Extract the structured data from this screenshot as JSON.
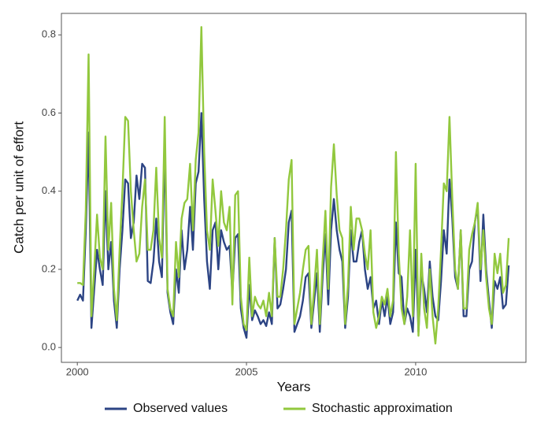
{
  "chart_data": {
    "type": "line",
    "xlabel": "Years",
    "ylabel": "Catch per unit of effort",
    "x": [
      2000,
      2000.083,
      2000.167,
      2000.25,
      2000.333,
      2000.417,
      2000.5,
      2000.583,
      2000.667,
      2000.75,
      2000.833,
      2000.917,
      2001,
      2001.083,
      2001.167,
      2001.25,
      2001.333,
      2001.417,
      2001.5,
      2001.583,
      2001.667,
      2001.75,
      2001.833,
      2001.917,
      2002,
      2002.083,
      2002.167,
      2002.25,
      2002.333,
      2002.417,
      2002.5,
      2002.583,
      2002.667,
      2002.75,
      2002.833,
      2002.917,
      2003,
      2003.083,
      2003.167,
      2003.25,
      2003.333,
      2003.417,
      2003.5,
      2003.583,
      2003.667,
      2003.75,
      2003.833,
      2003.917,
      2004,
      2004.083,
      2004.167,
      2004.25,
      2004.333,
      2004.417,
      2004.5,
      2004.583,
      2004.667,
      2004.75,
      2004.833,
      2004.917,
      2005,
      2005.083,
      2005.167,
      2005.25,
      2005.333,
      2005.417,
      2005.5,
      2005.583,
      2005.667,
      2005.75,
      2005.833,
      2005.917,
      2006,
      2006.083,
      2006.167,
      2006.25,
      2006.333,
      2006.417,
      2006.5,
      2006.583,
      2006.667,
      2006.75,
      2006.833,
      2006.917,
      2007,
      2007.083,
      2007.167,
      2007.25,
      2007.333,
      2007.417,
      2007.5,
      2007.583,
      2007.667,
      2007.75,
      2007.833,
      2007.917,
      2008,
      2008.083,
      2008.167,
      2008.25,
      2008.333,
      2008.417,
      2008.5,
      2008.583,
      2008.667,
      2008.75,
      2008.833,
      2008.917,
      2009,
      2009.083,
      2009.167,
      2009.25,
      2009.333,
      2009.417,
      2009.5,
      2009.583,
      2009.667,
      2009.75,
      2009.833,
      2009.917,
      2010,
      2010.083,
      2010.167,
      2010.25,
      2010.333,
      2010.417,
      2010.5,
      2010.583,
      2010.667,
      2010.75,
      2010.833,
      2010.917,
      2011,
      2011.083,
      2011.167,
      2011.25,
      2011.333,
      2011.417,
      2011.5,
      2011.583,
      2011.667,
      2011.75,
      2011.833,
      2011.917,
      2012,
      2012.083,
      2012.167,
      2012.25,
      2012.333,
      2012.417,
      2012.5,
      2012.583,
      2012.667,
      2012.75
    ],
    "series": [
      {
        "name": "Observed values",
        "color": "#2c4484",
        "values": [
          0.12,
          0.135,
          0.12,
          0.3,
          0.55,
          0.05,
          0.15,
          0.25,
          0.2,
          0.16,
          0.4,
          0.2,
          0.27,
          0.12,
          0.05,
          0.2,
          0.3,
          0.43,
          0.42,
          0.28,
          0.32,
          0.44,
          0.38,
          0.47,
          0.46,
          0.17,
          0.165,
          0.22,
          0.33,
          0.22,
          0.18,
          0.52,
          0.14,
          0.09,
          0.06,
          0.2,
          0.14,
          0.3,
          0.2,
          0.25,
          0.36,
          0.25,
          0.42,
          0.45,
          0.6,
          0.38,
          0.22,
          0.15,
          0.3,
          0.32,
          0.2,
          0.3,
          0.27,
          0.25,
          0.26,
          0.14,
          0.28,
          0.29,
          0.1,
          0.05,
          0.025,
          0.16,
          0.07,
          0.095,
          0.08,
          0.06,
          0.07,
          0.055,
          0.09,
          0.06,
          0.28,
          0.1,
          0.11,
          0.15,
          0.2,
          0.32,
          0.35,
          0.04,
          0.06,
          0.08,
          0.12,
          0.18,
          0.19,
          0.05,
          0.12,
          0.19,
          0.04,
          0.18,
          0.29,
          0.11,
          0.3,
          0.38,
          0.3,
          0.25,
          0.22,
          0.05,
          0.13,
          0.3,
          0.22,
          0.22,
          0.27,
          0.3,
          0.2,
          0.15,
          0.18,
          0.1,
          0.12,
          0.06,
          0.12,
          0.08,
          0.13,
          0.06,
          0.09,
          0.32,
          0.19,
          0.18,
          0.06,
          0.1,
          0.08,
          0.04,
          0.25,
          0.04,
          0.19,
          0.15,
          0.09,
          0.22,
          0.13,
          0.08,
          0.07,
          0.17,
          0.3,
          0.24,
          0.43,
          0.33,
          0.18,
          0.15,
          0.3,
          0.08,
          0.08,
          0.2,
          0.22,
          0.32,
          0.36,
          0.17,
          0.34,
          0.2,
          0.12,
          0.05,
          0.17,
          0.15,
          0.18,
          0.1,
          0.11,
          0.21
        ]
      },
      {
        "name": "Stochastic approximation",
        "color": "#92c83e",
        "values": [
          0.165,
          0.165,
          0.16,
          0.35,
          0.75,
          0.08,
          0.2,
          0.34,
          0.23,
          0.2,
          0.54,
          0.25,
          0.37,
          0.15,
          0.07,
          0.25,
          0.4,
          0.59,
          0.58,
          0.4,
          0.3,
          0.22,
          0.24,
          0.36,
          0.43,
          0.25,
          0.25,
          0.3,
          0.46,
          0.28,
          0.23,
          0.59,
          0.15,
          0.1,
          0.08,
          0.27,
          0.18,
          0.33,
          0.37,
          0.38,
          0.47,
          0.3,
          0.48,
          0.55,
          0.82,
          0.5,
          0.3,
          0.25,
          0.43,
          0.35,
          0.26,
          0.4,
          0.32,
          0.3,
          0.36,
          0.11,
          0.39,
          0.4,
          0.13,
          0.06,
          0.045,
          0.23,
          0.08,
          0.13,
          0.11,
          0.1,
          0.12,
          0.08,
          0.14,
          0.08,
          0.28,
          0.13,
          0.13,
          0.2,
          0.3,
          0.43,
          0.48,
          0.06,
          0.1,
          0.14,
          0.2,
          0.25,
          0.26,
          0.06,
          0.15,
          0.25,
          0.06,
          0.22,
          0.35,
          0.15,
          0.41,
          0.52,
          0.39,
          0.3,
          0.28,
          0.06,
          0.16,
          0.36,
          0.25,
          0.33,
          0.33,
          0.3,
          0.24,
          0.2,
          0.3,
          0.09,
          0.05,
          0.08,
          0.13,
          0.11,
          0.15,
          0.08,
          0.12,
          0.5,
          0.24,
          0.1,
          0.06,
          0.13,
          0.3,
          0.08,
          0.47,
          0.03,
          0.24,
          0.1,
          0.05,
          0.2,
          0.08,
          0.01,
          0.1,
          0.25,
          0.42,
          0.4,
          0.59,
          0.38,
          0.2,
          0.15,
          0.3,
          0.1,
          0.1,
          0.25,
          0.29,
          0.32,
          0.37,
          0.2,
          0.3,
          0.18,
          0.1,
          0.06,
          0.24,
          0.19,
          0.24,
          0.14,
          0.16,
          0.28
        ]
      }
    ],
    "xlim": [
      1999.53,
      2013.26
    ],
    "xticks": [
      2000,
      2005,
      2010
    ],
    "ylim": [
      -0.038,
      0.855
    ],
    "yticks": [
      {
        "value": 0,
        "label": "0.0"
      },
      {
        "value": 0.2,
        "label": "0.2"
      },
      {
        "value": 0.4,
        "label": "0.4"
      },
      {
        "value": 0.6,
        "label": "0.6"
      },
      {
        "value": 0.8,
        "label": "0.8"
      }
    ],
    "grid": false,
    "legend": "bottom"
  }
}
